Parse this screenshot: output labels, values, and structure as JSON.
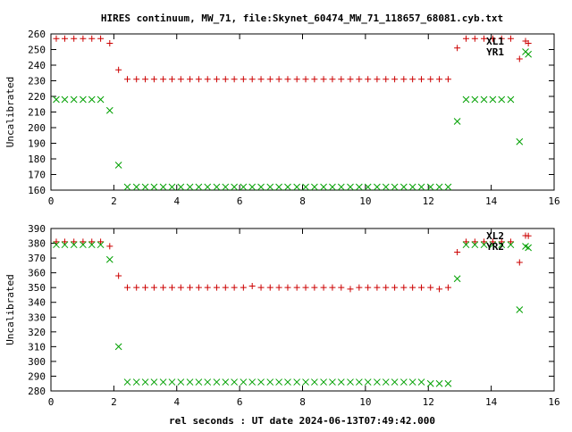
{
  "title": "HIRES continuum, MW_71, file:Skynet_60474_MW_71_118657_68081.cyb.txt",
  "xlabel": "rel seconds : UT date 2024-06-13T07:49:42.000",
  "colors": {
    "series1": "#cc0000",
    "series2": "#00a000"
  },
  "chart_data": [
    {
      "type": "scatter",
      "ylabel": "Uncalibrated",
      "xlim": [
        0,
        16
      ],
      "ylim": [
        160,
        260
      ],
      "xticks": [
        0,
        2,
        4,
        6,
        8,
        10,
        12,
        14,
        16
      ],
      "yticks": [
        160,
        170,
        180,
        190,
        200,
        210,
        220,
        230,
        240,
        250,
        260
      ],
      "legend_position": "top-right",
      "series": [
        {
          "name": "XL1",
          "marker": "plus",
          "x": [
            0.17,
            0.44,
            0.73,
            1.02,
            1.3,
            1.58,
            1.87,
            2.15,
            2.43,
            2.72,
            3.0,
            3.28,
            3.57,
            3.85,
            4.13,
            4.42,
            4.7,
            4.98,
            5.27,
            5.55,
            5.83,
            6.12,
            6.4,
            6.68,
            6.97,
            7.25,
            7.53,
            7.82,
            8.1,
            8.38,
            8.67,
            8.95,
            9.23,
            9.52,
            9.8,
            10.08,
            10.37,
            10.65,
            10.93,
            11.22,
            11.5,
            11.78,
            12.07,
            12.35,
            12.63,
            12.92,
            13.2,
            13.48,
            13.77,
            14.05,
            14.33,
            14.62,
            14.9,
            15.18
          ],
          "y": [
            257,
            257,
            257,
            257,
            257,
            257,
            254,
            237,
            231,
            231,
            231,
            231,
            231,
            231,
            231,
            231,
            231,
            231,
            231,
            231,
            231,
            231,
            231,
            231,
            231,
            231,
            231,
            231,
            231,
            231,
            231,
            231,
            231,
            231,
            231,
            231,
            231,
            231,
            231,
            231,
            231,
            231,
            231,
            231,
            231,
            251,
            257,
            257,
            257,
            257,
            257,
            257,
            244,
            254
          ]
        },
        {
          "name": "YR1",
          "marker": "cross",
          "x": [
            0.17,
            0.44,
            0.73,
            1.02,
            1.3,
            1.58,
            1.87,
            2.15,
            2.43,
            2.72,
            3.0,
            3.28,
            3.57,
            3.85,
            4.13,
            4.42,
            4.7,
            4.98,
            5.27,
            5.55,
            5.83,
            6.12,
            6.4,
            6.68,
            6.97,
            7.25,
            7.53,
            7.82,
            8.1,
            8.38,
            8.67,
            8.95,
            9.23,
            9.52,
            9.8,
            10.08,
            10.37,
            10.65,
            10.93,
            11.22,
            11.5,
            11.78,
            12.07,
            12.35,
            12.63,
            12.92,
            13.2,
            13.48,
            13.77,
            14.05,
            14.33,
            14.62,
            14.9,
            15.18
          ],
          "y": [
            218,
            218,
            218,
            218,
            218,
            218,
            211,
            176,
            162,
            162,
            162,
            162,
            162,
            162,
            162,
            162,
            162,
            162,
            162,
            162,
            162,
            162,
            162,
            162,
            162,
            162,
            162,
            162,
            162,
            162,
            162,
            162,
            162,
            162,
            162,
            162,
            162,
            162,
            162,
            162,
            162,
            162,
            162,
            162,
            162,
            204,
            218,
            218,
            218,
            218,
            218,
            218,
            191,
            247
          ]
        }
      ]
    },
    {
      "type": "scatter",
      "ylabel": "Uncalibrated",
      "xlim": [
        0,
        16
      ],
      "ylim": [
        280,
        390
      ],
      "xticks": [
        0,
        2,
        4,
        6,
        8,
        10,
        12,
        14,
        16
      ],
      "yticks": [
        280,
        290,
        300,
        310,
        320,
        330,
        340,
        350,
        360,
        370,
        380,
        390
      ],
      "legend_position": "top-right",
      "series": [
        {
          "name": "XL2",
          "marker": "plus",
          "x": [
            0.17,
            0.44,
            0.73,
            1.02,
            1.3,
            1.58,
            1.87,
            2.15,
            2.43,
            2.72,
            3.0,
            3.28,
            3.57,
            3.85,
            4.13,
            4.42,
            4.7,
            4.98,
            5.27,
            5.55,
            5.83,
            6.12,
            6.4,
            6.68,
            6.97,
            7.25,
            7.53,
            7.82,
            8.1,
            8.38,
            8.67,
            8.95,
            9.23,
            9.52,
            9.8,
            10.08,
            10.37,
            10.65,
            10.93,
            11.22,
            11.5,
            11.78,
            12.07,
            12.35,
            12.63,
            12.92,
            13.2,
            13.48,
            13.77,
            14.05,
            14.33,
            14.62,
            14.9,
            15.18
          ],
          "y": [
            381,
            381,
            381,
            381,
            381,
            381,
            378,
            358,
            350,
            350,
            350,
            350,
            350,
            350,
            350,
            350,
            350,
            350,
            350,
            350,
            350,
            350,
            351,
            350,
            350,
            350,
            350,
            350,
            350,
            350,
            350,
            350,
            350,
            349,
            350,
            350,
            350,
            350,
            350,
            350,
            350,
            350,
            350,
            349,
            350,
            374,
            381,
            381,
            381,
            381,
            381,
            381,
            367,
            385
          ]
        },
        {
          "name": "YR2",
          "marker": "cross",
          "x": [
            0.17,
            0.44,
            0.73,
            1.02,
            1.3,
            1.58,
            1.87,
            2.15,
            2.43,
            2.72,
            3.0,
            3.28,
            3.57,
            3.85,
            4.13,
            4.42,
            4.7,
            4.98,
            5.27,
            5.55,
            5.83,
            6.12,
            6.4,
            6.68,
            6.97,
            7.25,
            7.53,
            7.82,
            8.1,
            8.38,
            8.67,
            8.95,
            9.23,
            9.52,
            9.8,
            10.08,
            10.37,
            10.65,
            10.93,
            11.22,
            11.5,
            11.78,
            12.07,
            12.35,
            12.63,
            12.92,
            13.2,
            13.48,
            13.77,
            14.05,
            14.33,
            14.62,
            14.9,
            15.18
          ],
          "y": [
            379,
            379,
            379,
            379,
            379,
            379,
            369,
            310,
            286,
            286,
            286,
            286,
            286,
            286,
            286,
            286,
            286,
            286,
            286,
            286,
            286,
            286,
            286,
            286,
            286,
            286,
            286,
            286,
            286,
            286,
            286,
            286,
            286,
            286,
            286,
            286,
            286,
            286,
            286,
            286,
            286,
            286,
            285,
            285,
            285,
            356,
            379,
            379,
            379,
            379,
            379,
            379,
            335,
            377
          ]
        }
      ]
    }
  ]
}
